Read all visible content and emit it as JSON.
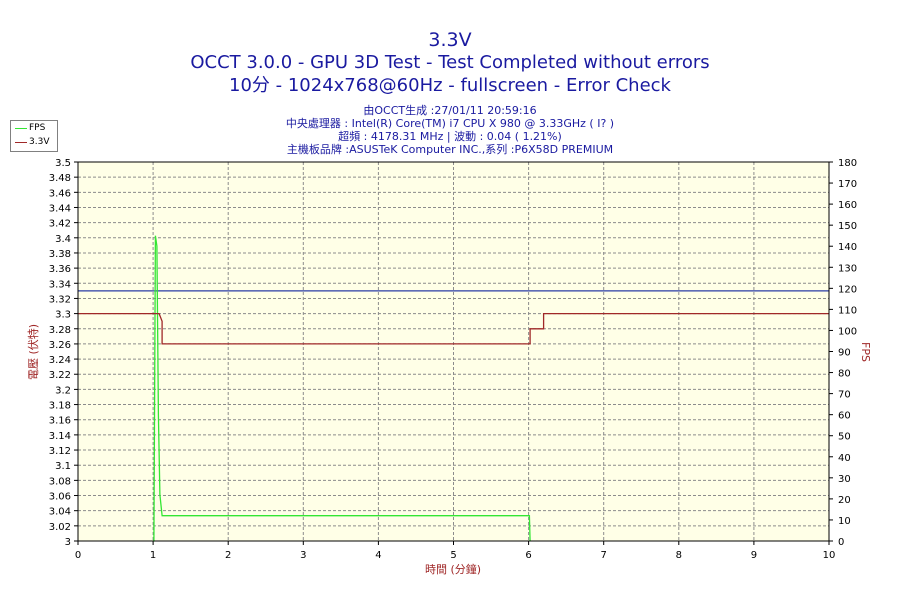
{
  "chart_data": {
    "type": "line",
    "title": "3.3V",
    "subtitle_lines": [
      "OCCT 3.0.0 - GPU 3D Test - Test Completed without errors",
      "10分 - 1024x768@60Hz - fullscreen - Error Check"
    ],
    "info_lines": [
      "由OCCT生成 :27/01/11 20:59:16",
      "中央處理器 : Intel(R) Core(TM) i7 CPU X 980 @ 3.33GHz (  I? )",
      "超頻 : 4178.31 MHz | 波動 : 0.04 ( 1.21%)",
      "主機板品牌 :ASUSTeK Computer INC.,系列 :P6X58D PREMIUM"
    ],
    "xlabel": "時間 (分鐘)",
    "ylabel": "電壓 (伏特)",
    "y2label": "FPS",
    "xlim": [
      0,
      10
    ],
    "ylim": [
      3,
      3.5
    ],
    "y2lim": [
      0,
      180
    ],
    "x_ticks": [
      "0",
      "1",
      "2",
      "3",
      "4",
      "5",
      "6",
      "7",
      "8",
      "9",
      "10"
    ],
    "y_ticks": [
      "3",
      "3.02",
      "3.04",
      "3.06",
      "3.08",
      "3.1",
      "3.12",
      "3.14",
      "3.16",
      "3.18",
      "3.2",
      "3.22",
      "3.24",
      "3.26",
      "3.28",
      "3.3",
      "3.32",
      "3.34",
      "3.36",
      "3.38",
      "3.4",
      "3.42",
      "3.44",
      "3.46",
      "3.48",
      "3.5"
    ],
    "y2_ticks": [
      "0",
      "10",
      "20",
      "30",
      "40",
      "50",
      "60",
      "70",
      "80",
      "90",
      "100",
      "110",
      "120",
      "130",
      "140",
      "150",
      "160",
      "170",
      "180"
    ],
    "grid": true,
    "legend_position": "top-left",
    "reference_line": {
      "y": 3.33,
      "color": "#2a3ba6"
    },
    "series": [
      {
        "name": "FPS",
        "axis": "right",
        "color": "#33e633",
        "points": [
          [
            1.0,
            0
          ],
          [
            1.01,
            0
          ],
          [
            1.03,
            145
          ],
          [
            1.05,
            140
          ],
          [
            1.07,
            60
          ],
          [
            1.09,
            22
          ],
          [
            1.12,
            12
          ],
          [
            6.01,
            12
          ],
          [
            6.02,
            0
          ]
        ]
      },
      {
        "name": "3.3V",
        "axis": "left",
        "color": "#a02828",
        "points": [
          [
            0,
            3.3
          ],
          [
            1.08,
            3.3
          ],
          [
            1.12,
            3.29
          ],
          [
            1.12,
            3.26
          ],
          [
            6.02,
            3.26
          ],
          [
            6.02,
            3.28
          ],
          [
            6.2,
            3.28
          ],
          [
            6.2,
            3.3
          ],
          [
            10,
            3.3
          ]
        ]
      }
    ]
  },
  "colors": {
    "title": "#1a1aa0",
    "plot_bg": "#ffffe7",
    "grid": "#8c8c8c",
    "axis_text": "#000000",
    "ylabel": "#a02828"
  }
}
